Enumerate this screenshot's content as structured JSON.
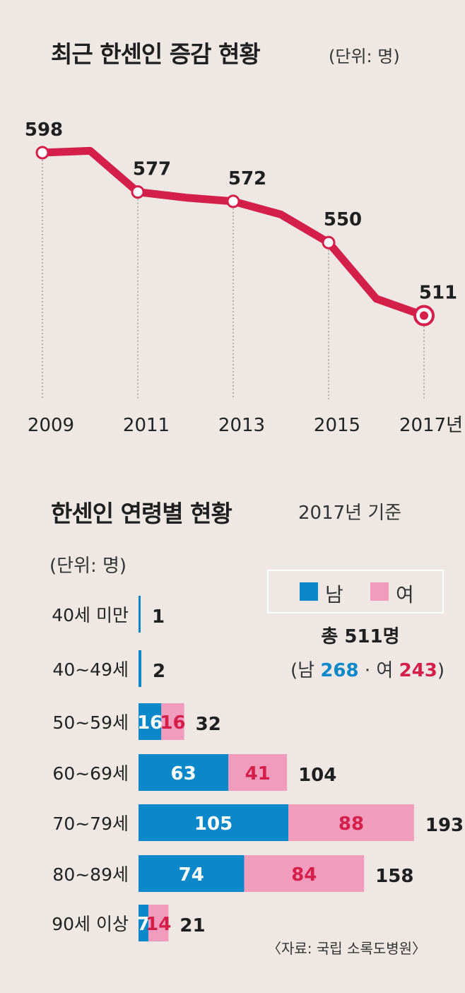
{
  "chart_data": [
    {
      "type": "line",
      "title": "최근 한센인 증감 현황",
      "unit": "(단위: 명)",
      "x": [
        2009,
        2010,
        2011,
        2012,
        2013,
        2014,
        2015,
        2016,
        2017
      ],
      "values": [
        598,
        599,
        577,
        574,
        572,
        565,
        550,
        520,
        511
      ],
      "labeled_years": [
        2009,
        2011,
        2013,
        2015,
        2017
      ],
      "labeled_values": [
        "598",
        "577",
        "572",
        "550",
        "511"
      ],
      "x_tick_labels": [
        "2009",
        "2011",
        "2013",
        "2015",
        "2017년"
      ],
      "highlight": "2017",
      "line_color": "#d41f4b"
    },
    {
      "type": "bar",
      "orientation": "horizontal-stacked",
      "title": "한센인 연령별 현황",
      "basis": "2017년 기준",
      "unit": "(단위: 명)",
      "categories": [
        "40세 미만",
        "40~49세",
        "50~59세",
        "60~69세",
        "70~79세",
        "80~89세",
        "90세 이상"
      ],
      "series": [
        {
          "name": "남",
          "color": "#0a88c9",
          "values": [
            1,
            2,
            16,
            63,
            105,
            74,
            7
          ]
        },
        {
          "name": "여",
          "color": "#f19bbd",
          "values": [
            0,
            0,
            16,
            41,
            88,
            84,
            14
          ]
        }
      ],
      "totals": [
        1,
        2,
        32,
        104,
        193,
        158,
        21
      ],
      "legend_position": "top-right",
      "summary": {
        "total": "총 511명",
        "open": "(남",
        "male": "268",
        "sep": "· 여",
        "female": "243",
        "close": ")"
      },
      "source": "〈자료: 국립 소록도병원〉"
    }
  ]
}
